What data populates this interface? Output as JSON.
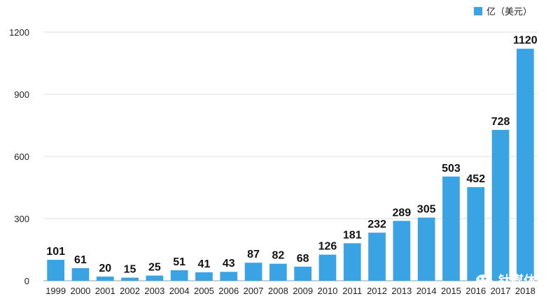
{
  "chart_data": {
    "type": "bar",
    "categories": [
      "1999",
      "2000",
      "2001",
      "2002",
      "2003",
      "2004",
      "2005",
      "2006",
      "2007",
      "2008",
      "2009",
      "2010",
      "2011",
      "2012",
      "2013",
      "2014",
      "2015",
      "2016",
      "2017",
      "2018"
    ],
    "series": [
      {
        "name": "亿（美元）",
        "values": [
          101,
          61,
          20,
          15,
          25,
          51,
          41,
          43,
          87,
          82,
          68,
          126,
          181,
          232,
          289,
          305,
          503,
          452,
          728,
          1120
        ]
      }
    ],
    "title": "",
    "xlabel": "",
    "ylabel": "",
    "ylim": [
      0,
      1200
    ],
    "yticks": [
      0,
      300,
      600,
      900,
      1200
    ],
    "grid": "horizontal",
    "legend_position": "top-right",
    "bar_color": "#3aa3e3"
  },
  "watermark": {
    "text": "钛媒体",
    "icon": "wechat-icon"
  }
}
